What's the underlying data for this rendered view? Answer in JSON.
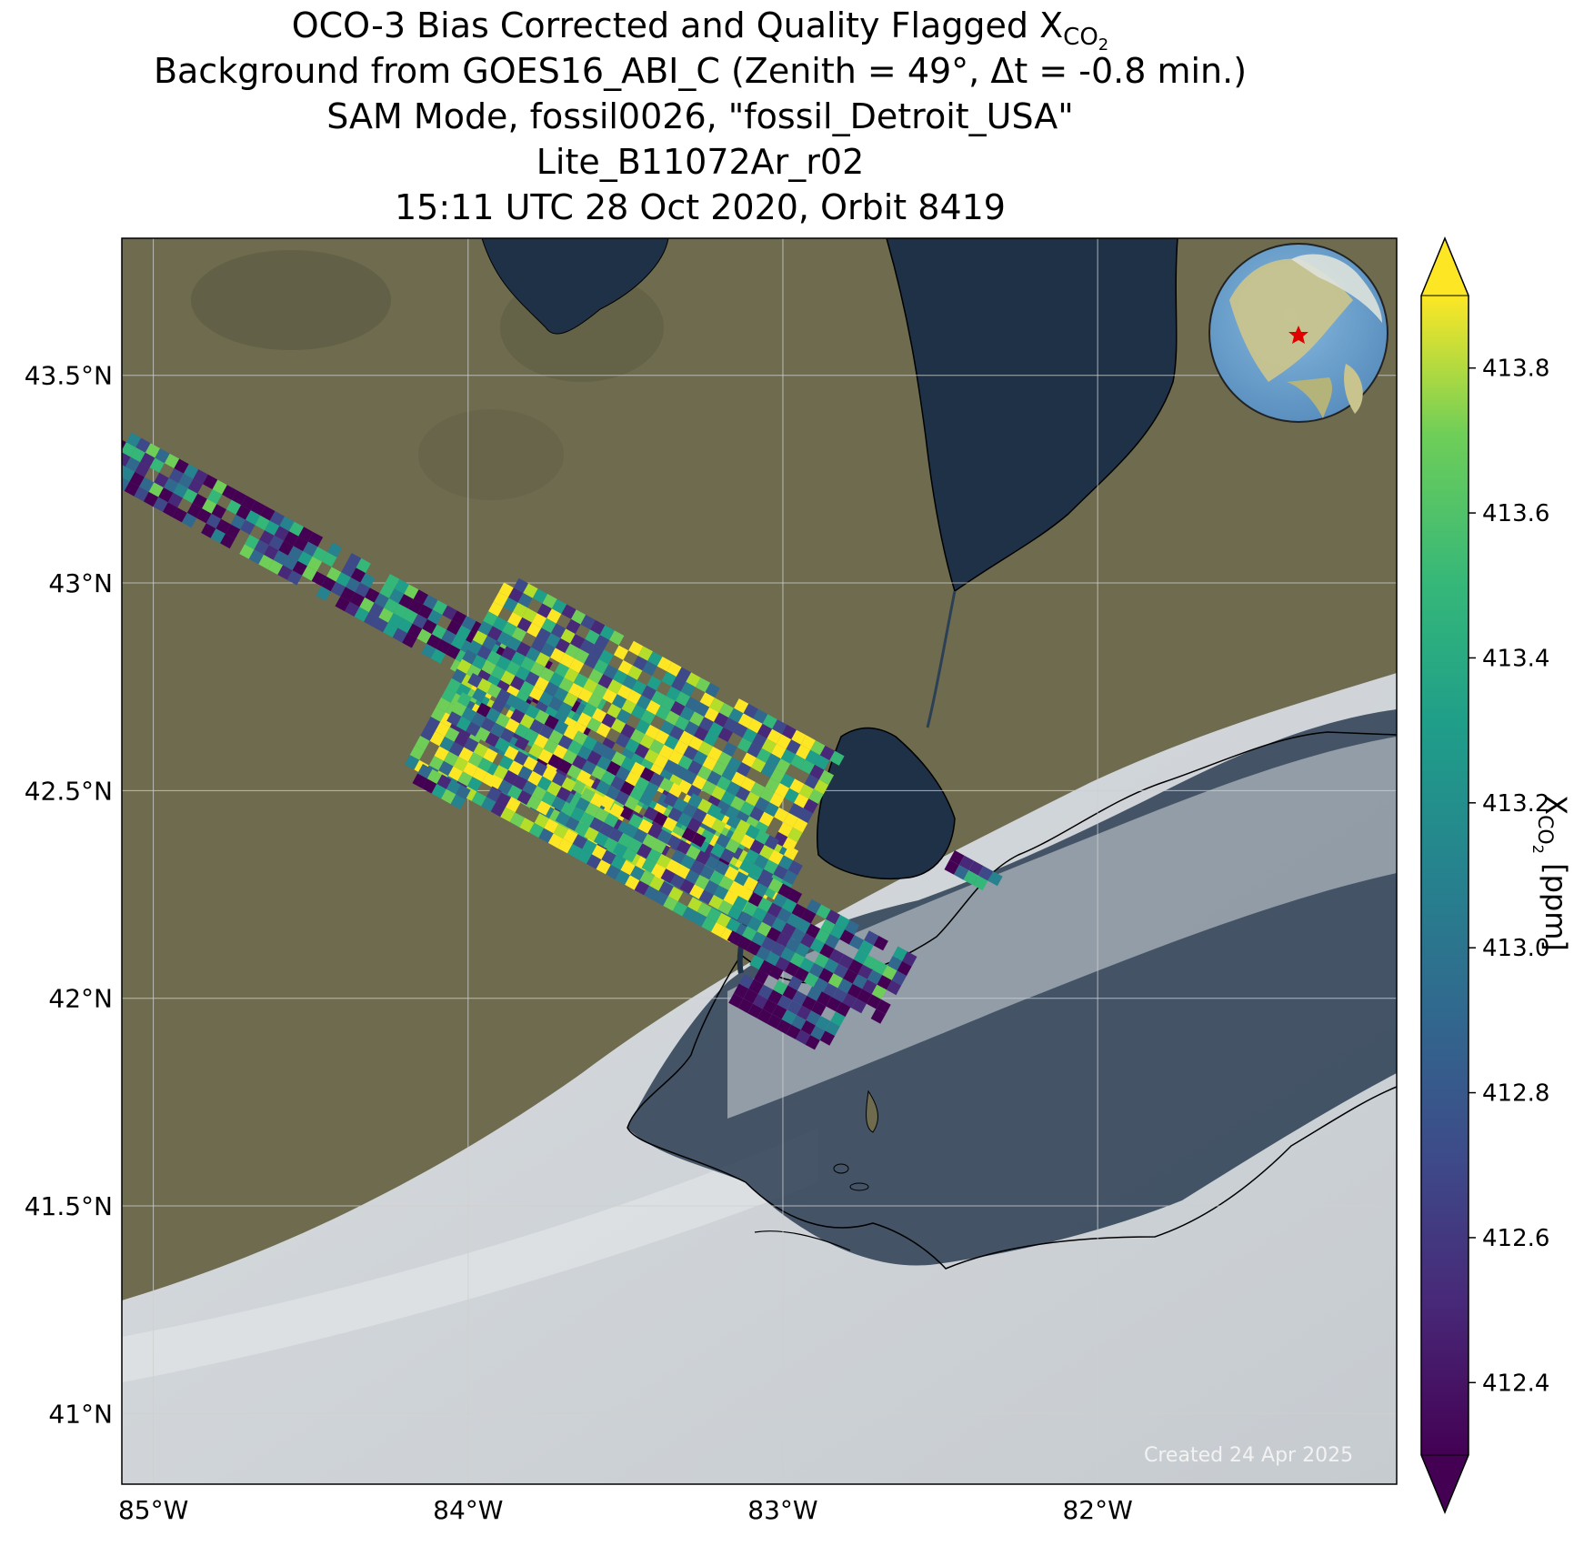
{
  "titles": {
    "line1_prefix": "OCO-3 Bias Corrected and Quality Flagged X",
    "line1_sub": "CO",
    "line1_subsub": "2",
    "line2": "Background from GOES16_ABI_C (Zenith = 49°, Δt = -0.8 min.)",
    "line3": "SAM Mode, fossil0026, \"fossil_Detroit_USA\"",
    "line4": "Lite_B11072Ar_r02",
    "line5": "15:11 UTC 28 Oct 2020, Orbit 8419"
  },
  "map": {
    "lon_range": [
      -85.1,
      -81.05
    ],
    "lat_range": [
      40.83,
      43.83
    ],
    "lon_ticks": [
      {
        "value": -85,
        "label": "85°W"
      },
      {
        "value": -84,
        "label": "84°W"
      },
      {
        "value": -83,
        "label": "83°W"
      },
      {
        "value": -82,
        "label": "82°W"
      }
    ],
    "lat_ticks": [
      {
        "value": 43.5,
        "label": "43.5°N"
      },
      {
        "value": 43.0,
        "label": "43°N"
      },
      {
        "value": 42.5,
        "label": "42.5°N"
      },
      {
        "value": 42.0,
        "label": "42°N"
      },
      {
        "value": 41.5,
        "label": "41.5°N"
      },
      {
        "value": 41.0,
        "label": "41°N"
      }
    ],
    "target_marker": "red-star",
    "inset": "globe-north-america",
    "credit": "Created 24 Apr 2025"
  },
  "colorbar": {
    "colormap": "viridis",
    "range": [
      412.3,
      413.9
    ],
    "extend": "both",
    "ticks": [
      "413.8",
      "413.6",
      "413.4",
      "413.2",
      "413.0",
      "412.8",
      "412.6",
      "412.4"
    ],
    "tick_values": [
      413.8,
      413.6,
      413.4,
      413.2,
      413.0,
      412.8,
      412.6,
      412.4
    ],
    "label_prefix": "X",
    "label_sub": "CO",
    "label_subsub": "2",
    "label_suffix": " [ppm]"
  }
}
